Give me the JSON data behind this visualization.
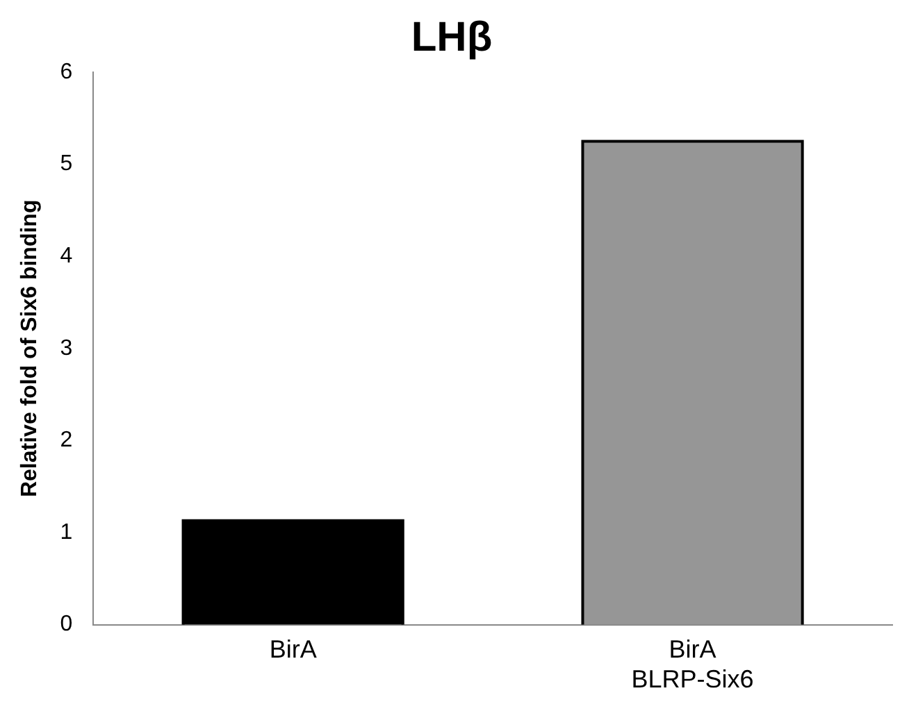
{
  "chart_data": {
    "type": "bar",
    "title": "LHβ",
    "ylabel": "Relative fold of Six6 binding",
    "categories": [
      "BirA",
      "BirA BLRP-Six6"
    ],
    "values": [
      1.13,
      5.25
    ],
    "colors": [
      "#000000",
      "#969696"
    ],
    "ylim": [
      0,
      6
    ],
    "yticks": [
      0,
      1,
      2,
      3,
      4,
      5,
      6
    ],
    "grid": false,
    "legend": false
  }
}
